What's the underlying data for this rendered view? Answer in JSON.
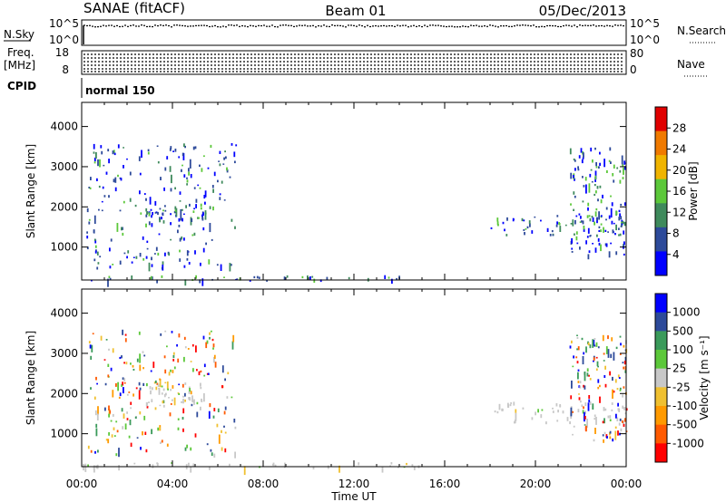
{
  "header": {
    "radar": "SANAE (fitACF)",
    "beam": "Beam 01",
    "date": "05/Dec/2013"
  },
  "status": {
    "nsky_label": "N.Sky",
    "nsky_ticks": [
      "10^5",
      "10^0"
    ],
    "nsearch_label": "N.Search",
    "freq_label_1": "Freq.",
    "freq_label_2": "[MHz]",
    "freq_ticks": [
      "18",
      "8"
    ],
    "nave_label": "Nave",
    "nave_ticks": [
      "80",
      "0"
    ],
    "cpid_label": "CPID",
    "cpid_value": "normal 150"
  },
  "colors": {
    "power_scale": [
      "#0000ff",
      "#2d4a9a",
      "#3f8a5c",
      "#5cc83a",
      "#f0b400",
      "#f07a00",
      "#e00000"
    ],
    "velocity_scale": [
      "#ff0000",
      "#ff5a00",
      "#ff9a00",
      "#f0c030",
      "#c8c8c8",
      "#5cc83a",
      "#3a9a5a",
      "#2d4a9a",
      "#0000ff"
    ]
  },
  "chart_data": [
    {
      "type": "heatmap",
      "name": "power",
      "xlabel": "",
      "ylabel": "Slant Range [km]",
      "x_ticks": [
        "00:00",
        "04:00",
        "08:00",
        "12:00",
        "16:00",
        "20:00",
        "00:00"
      ],
      "x_range_hours": [
        0,
        24
      ],
      "y_ticks": [
        1000,
        2000,
        3000,
        4000
      ],
      "ylim": [
        180,
        4600
      ],
      "colorbar": {
        "label": "Power [dB]",
        "ticks": [
          "28",
          "24",
          "20",
          "16",
          "12",
          "8",
          "4"
        ],
        "range": [
          0,
          31
        ]
      },
      "echo_regions": [
        {
          "t_start": 0.2,
          "t_end": 6.8,
          "r_min": 500,
          "r_max": 3600,
          "level": "low"
        },
        {
          "t_start": 2.7,
          "t_end": 5.4,
          "r_min": 1700,
          "r_max": 2100,
          "level": "low"
        },
        {
          "t_start": 0.0,
          "t_end": 15.0,
          "r_min": 180,
          "r_max": 300,
          "level": "low"
        },
        {
          "t_start": 18.0,
          "t_end": 24.0,
          "r_min": 1300,
          "r_max": 1800,
          "level": "low"
        },
        {
          "t_start": 21.5,
          "t_end": 24.0,
          "r_min": 800,
          "r_max": 3500,
          "level": "low"
        }
      ]
    },
    {
      "type": "heatmap",
      "name": "velocity",
      "xlabel": "Time UT",
      "ylabel": "Slant Range [km]",
      "x_ticks": [
        "00:00",
        "04:00",
        "08:00",
        "12:00",
        "16:00",
        "20:00",
        "00:00"
      ],
      "x_range_hours": [
        0,
        24
      ],
      "y_ticks": [
        1000,
        2000,
        3000,
        4000
      ],
      "ylim": [
        180,
        4600
      ],
      "colorbar": {
        "label": "Velocity [m s⁻¹]",
        "ticks": [
          "1000",
          "500",
          "100",
          "25",
          "-25",
          "-100",
          "-500",
          "-1000"
        ],
        "range": [
          -1200,
          1200
        ]
      },
      "echo_regions": [
        {
          "t_start": 0.2,
          "t_end": 6.8,
          "r_min": 500,
          "r_max": 3600,
          "level": "mixed"
        },
        {
          "t_start": 2.7,
          "t_end": 5.4,
          "r_min": 1700,
          "r_max": 2300,
          "level": "near-zero"
        },
        {
          "t_start": 0.0,
          "t_end": 15.0,
          "r_min": 180,
          "r_max": 300,
          "level": "near-zero"
        },
        {
          "t_start": 18.0,
          "t_end": 24.0,
          "r_min": 1300,
          "r_max": 1800,
          "level": "near-zero"
        },
        {
          "t_start": 21.5,
          "t_end": 24.0,
          "r_min": 800,
          "r_max": 3500,
          "level": "mixed"
        }
      ]
    }
  ]
}
